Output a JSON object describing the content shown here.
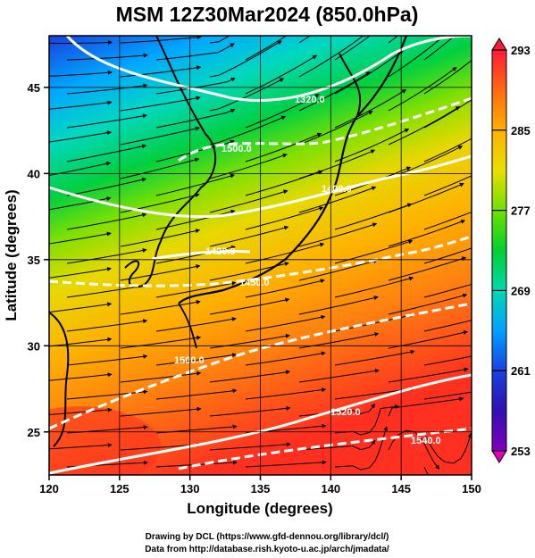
{
  "title": "MSM 12Z30Mar2024 (850.0hPa)",
  "x_axis": {
    "label": "Longitude (degrees)",
    "range": [
      120,
      150
    ],
    "ticks": [
      "120",
      "125",
      "130",
      "135",
      "140",
      "145",
      "150"
    ]
  },
  "y_axis": {
    "label": "Latitude  (degrees)",
    "range": [
      22.5,
      48
    ],
    "ticks": [
      "25",
      "30",
      "35",
      "40",
      "45"
    ]
  },
  "colorbar": {
    "range": [
      253,
      293
    ],
    "ticks": [
      "293",
      "285",
      "277",
      "269",
      "261",
      "253"
    ],
    "colors": [
      "#ff1a3a",
      "#ff6a10",
      "#ffb000",
      "#e8e000",
      "#70e000",
      "#00d030",
      "#00d8b0",
      "#00a0ff",
      "#1a40e0",
      "#3010b0",
      "#8000c0",
      "#e000c0"
    ]
  },
  "contours": [
    {
      "label": "1320.0"
    },
    {
      "label": "1500.0"
    },
    {
      "label": "1400.0"
    },
    {
      "label": "1450.0"
    },
    {
      "label": "1420.0"
    },
    {
      "label": "1500.0"
    },
    {
      "label": "1520.0"
    },
    {
      "label": "1540.0"
    }
  ],
  "credits": {
    "line1": "Drawing by DCL (https://www.gfd-dennou.org/library/dcl/)",
    "line2": "Data from http://database.rish.kyoto-u.ac.jp/arch/jmadata/"
  }
}
